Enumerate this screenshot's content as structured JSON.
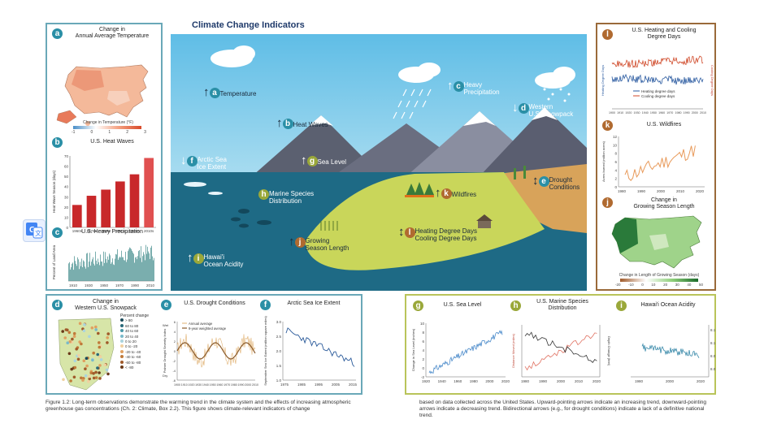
{
  "main_title": "Climate Change Indicators",
  "translate_icon_label": "G",
  "panels": {
    "a": {
      "letter": "a",
      "title": "Change in\nAnnual Average Temperature",
      "legend": "Change in Temperature (°F)",
      "ticks": [
        "-1",
        "0",
        "1",
        "2",
        "3"
      ]
    },
    "b": {
      "letter": "b",
      "title": "U.S. Heat Waves",
      "ylabel": "Heat Wave Season (days)",
      "yticks": [
        "0",
        "10",
        "20",
        "30",
        "40",
        "50",
        "60",
        "70"
      ],
      "cats": [
        "1960s",
        "1970s",
        "1980s",
        "1990s",
        "2000s",
        "2010s"
      ],
      "values": [
        22,
        31,
        37,
        45,
        52,
        68
      ]
    },
    "c": {
      "letter": "c",
      "title": "U.S. Heavy Precipitation",
      "ylabel": "Percent of Land Area",
      "xticks": [
        "1910",
        "1930",
        "1950",
        "1970",
        "1990",
        "2010"
      ]
    },
    "d": {
      "letter": "d",
      "title": "Change in\nWestern U.S. Snowpack",
      "legend_title": "Percent change",
      "legend": [
        "> 80",
        "60 to 80",
        "40 to 60",
        "20 to 40",
        "0 to 20",
        "0 to -20",
        "-20 to -40",
        "-40 to -60",
        "-60 to -80",
        "< -80"
      ]
    },
    "e": {
      "letter": "e",
      "title": "U.S. Drought Conditions",
      "legend": [
        "Annual average",
        "9-year weighted average"
      ],
      "ylabel": "Palmer Drought Severity Index",
      "wet": "Wet",
      "dry": "Dry",
      "xticks": [
        "1900",
        "1910",
        "1920",
        "1930",
        "1940",
        "1950",
        "1960",
        "1970",
        "1980",
        "1990",
        "2000",
        "2010"
      ],
      "yticks": [
        "6",
        "4",
        "2",
        "0",
        "-2",
        "-4",
        "-6"
      ]
    },
    "f": {
      "letter": "f",
      "title": "Arctic Sea Ice Extent",
      "ylabel": "September Sea Ice Extent (million square miles)",
      "xticks": [
        "1975",
        "1985",
        "1995",
        "2005",
        "2015"
      ],
      "yticks": [
        "3.0",
        "2.5",
        "2.0",
        "1.5",
        "1.0"
      ]
    },
    "g": {
      "letter": "g",
      "title": "U.S. Sea Level",
      "ylabel": "Change in Sea Level (inches)",
      "xticks": [
        "1920",
        "1940",
        "1960",
        "1980",
        "2000",
        "2020"
      ],
      "yticks": [
        "10",
        "8",
        "6",
        "4",
        "2",
        "0",
        "-2"
      ]
    },
    "h": {
      "letter": "h",
      "title": "U.S. Marine Species\nDistribution",
      "ylabel_left": "Distance Moved (miles)",
      "ylabel_right": "Depth Change (feet)",
      "xticks": [
        "1980",
        "1990",
        "2000",
        "2010",
        "2020"
      ]
    },
    "i": {
      "letter": "i",
      "title": "Hawai'i Ocean Acidity",
      "xticks": [
        "1980",
        "2000",
        "2020"
      ],
      "yticks": [
        "8.15",
        "8.10",
        "8.05",
        "8.00"
      ]
    },
    "l": {
      "letter": "l",
      "title": "U.S. Heating and Cooling\nDegree Days",
      "ylabel_left": "Heating Degree Days",
      "ylabel_right": "Cooling Degree Days",
      "legend": [
        "Heating degree days",
        "Cooling degree days"
      ],
      "xticks": [
        "1900",
        "1910",
        "1920",
        "1930",
        "1940",
        "1950",
        "1960",
        "1970",
        "1980",
        "1990",
        "2000",
        "2010"
      ]
    },
    "k": {
      "letter": "k",
      "title": "U.S. Wildfires",
      "ylabel": "Acres burned (million acres)",
      "yticks": [
        "12",
        "10",
        "8",
        "6",
        "4",
        "2",
        "0"
      ],
      "xticks": [
        "1980",
        "1990",
        "2000",
        "2010",
        "2020"
      ]
    },
    "j": {
      "letter": "j",
      "title": "Change in\nGrowing Season Length",
      "legend": "Change in Length of Growing Season (days)",
      "ticks": [
        "-20",
        "-10",
        "0",
        "10",
        "20",
        "30",
        "40",
        "50"
      ]
    }
  },
  "scene": {
    "temperature": "Temperature",
    "heat_waves": "Heat Waves",
    "heavy_precip": "Heavy\nPrecipitation",
    "snowpack": "Western\nU.S. Snowpack",
    "arctic": "Arctic Sea\nIce Extent",
    "sea_level": "Sea Level",
    "marine": "Marine Species\nDistribution",
    "wildfires": "Wildfires",
    "drought": "Drought\nConditions",
    "growing": "Growing\nSeason Length",
    "degree_days": "Heating Degree Days\nCooling Degree Days",
    "acidity": "Hawai'i\nOcean Acidity"
  },
  "caption_left": "Figure 1.2: Long-term observations demonstrate the warming trend in the climate system and the effects of increasing atmospheric greenhouse gas concentrations (Ch. 2: Climate, Box 2.2). This figure shows climate-relevant indicators of change",
  "caption_right": "based on data collected across the United States. Upward-pointing arrows indicate an increasing trend, downward-pointing arrows indicate a decreasing trend. Bidirectional arrows (e.g., for drought conditions) indicate a lack of a definitive national trend.",
  "colors": {
    "teal": "#2a8fa6",
    "brown": "#b06a30",
    "olive": "#9aa83a",
    "sky": "#6ec4e6",
    "ocean": "#1e6a85",
    "land": "#c9d65a",
    "bar_red": "#c8282a"
  }
}
